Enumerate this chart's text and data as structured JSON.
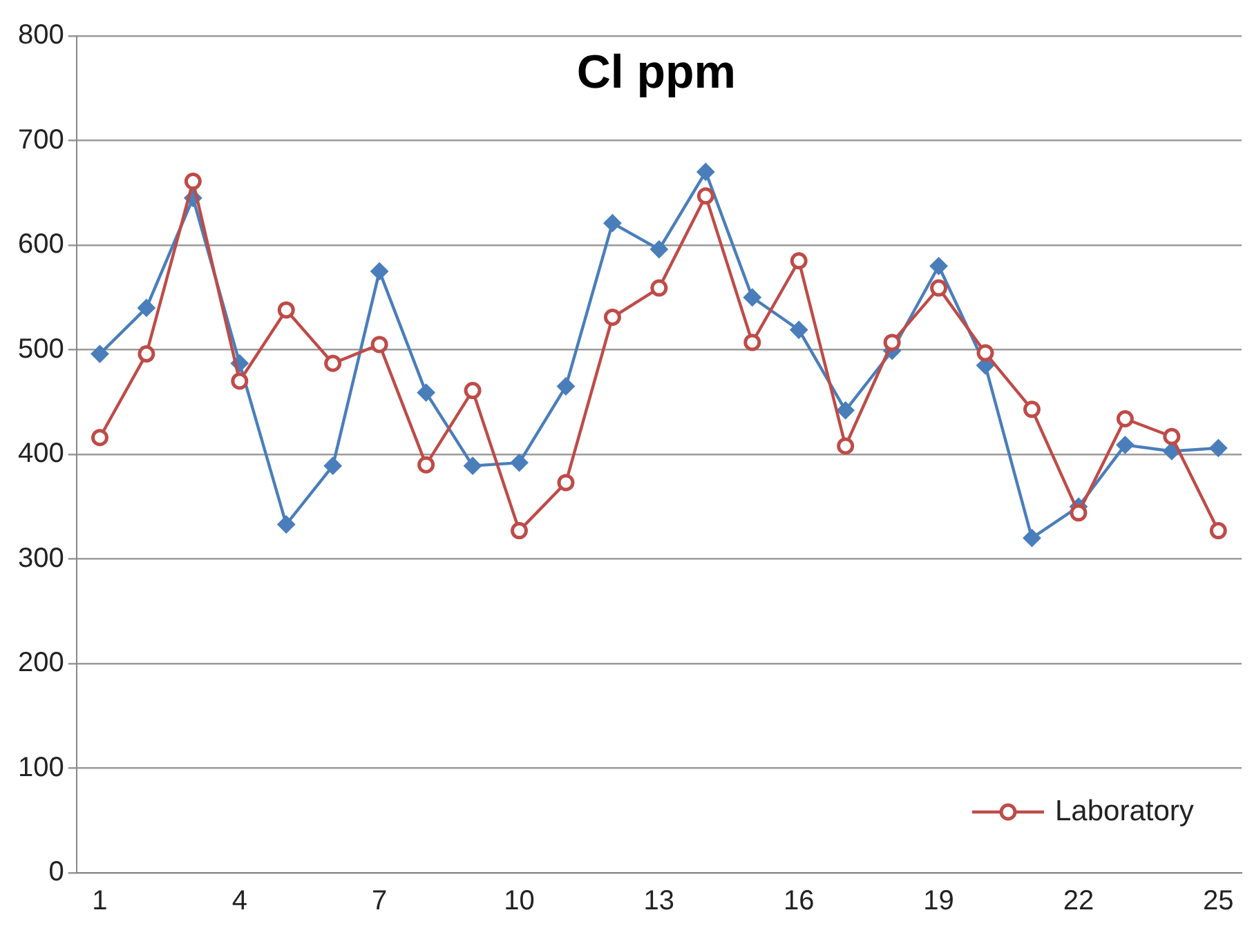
{
  "chart_data": {
    "type": "line",
    "title": "Cl ppm",
    "categories": [
      "1",
      null,
      null,
      "4",
      null,
      null,
      "7",
      null,
      null,
      "10",
      null,
      null,
      "13",
      null,
      null,
      "16",
      null,
      null,
      "19",
      null,
      null,
      "22",
      null,
      null,
      "25"
    ],
    "series": [
      {
        "color": "#4a7ebb",
        "marker": "diamond",
        "values": [
          496,
          540,
          645,
          487,
          333,
          389,
          575,
          459,
          389,
          392,
          465,
          621,
          596,
          670,
          550,
          519,
          442,
          499,
          580,
          485,
          320,
          350,
          409,
          403,
          406
        ]
      },
      {
        "name": "Laboratory",
        "color": "#be4b48",
        "marker": "circle",
        "values": [
          416,
          496,
          661,
          470,
          538,
          487,
          505,
          390,
          461,
          327,
          373,
          531,
          559,
          647,
          507,
          585,
          408,
          507,
          559,
          497,
          443,
          344,
          434,
          417,
          327
        ]
      }
    ],
    "ylim": [
      0,
      800
    ],
    "yticks": [
      0,
      100,
      200,
      300,
      400,
      500,
      600,
      700,
      800
    ],
    "grid": "y",
    "legend": "bottom right",
    "line_style": "solid"
  }
}
